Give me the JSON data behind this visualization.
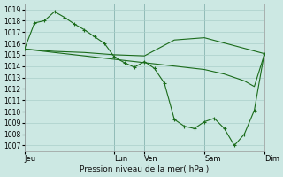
{
  "xlabel": "Pression niveau de la mer( hPa )",
  "ylim": [
    1006.5,
    1019.5
  ],
  "yticks": [
    1007,
    1008,
    1009,
    1010,
    1011,
    1012,
    1013,
    1014,
    1015,
    1016,
    1017,
    1018,
    1019
  ],
  "day_labels": [
    "Jeu",
    "Lun",
    "Ven",
    "Sam",
    "Dim"
  ],
  "day_positions": [
    0,
    9,
    12,
    18,
    24
  ],
  "xlim": [
    0,
    24
  ],
  "background_color": "#cce8e3",
  "line_color": "#1a6b1a",
  "grid_color": "#aacfca",
  "vline_color": "#5a9090",
  "line1_x": [
    0,
    1,
    2,
    3,
    4,
    5,
    6,
    7,
    8,
    9,
    10,
    11,
    12,
    13,
    14,
    15,
    16,
    17,
    18,
    19,
    20,
    21,
    22,
    23,
    24
  ],
  "line1_y": [
    1015.5,
    1017.8,
    1018.0,
    1018.8,
    1018.3,
    1017.7,
    1017.2,
    1016.6,
    1016.0,
    1014.8,
    1014.3,
    1013.9,
    1014.4,
    1013.8,
    1012.5,
    1009.3,
    1008.7,
    1008.5,
    1009.1,
    1009.4,
    1008.5,
    1007.0,
    1008.0,
    1010.1,
    1015.1
  ],
  "line1_markers": true,
  "line2_x": [
    0,
    3,
    6,
    9,
    12,
    15,
    18,
    21,
    24
  ],
  "line2_y": [
    1015.5,
    1015.3,
    1015.2,
    1015.0,
    1014.9,
    1016.3,
    1016.5,
    1015.8,
    1015.1
  ],
  "line2_markers": false,
  "line3_x": [
    0,
    1,
    2,
    3,
    4,
    5,
    6,
    7,
    8,
    9,
    10,
    11,
    12,
    13,
    14,
    15,
    16,
    17,
    18,
    19,
    20,
    21,
    22,
    23,
    24
  ],
  "line3_y": [
    1015.5,
    1015.4,
    1015.3,
    1015.2,
    1015.1,
    1015.0,
    1014.9,
    1014.8,
    1014.7,
    1014.6,
    1014.5,
    1014.4,
    1014.3,
    1014.2,
    1014.1,
    1014.0,
    1013.9,
    1013.8,
    1013.7,
    1013.5,
    1013.3,
    1013.0,
    1012.7,
    1012.2,
    1015.0
  ],
  "line3_markers": false
}
